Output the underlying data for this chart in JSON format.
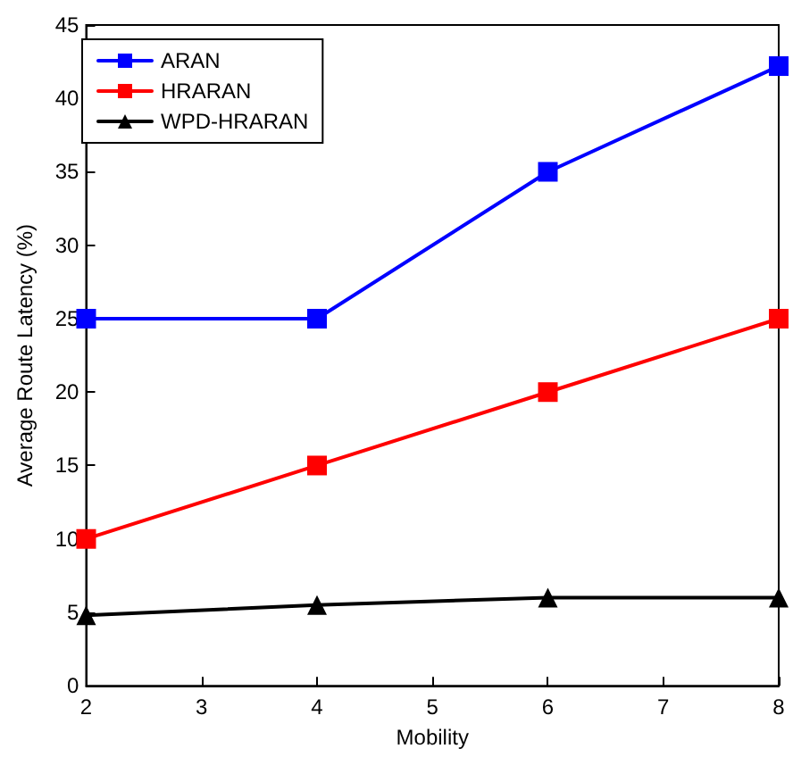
{
  "chart_data": {
    "type": "line",
    "xlabel": "Mobility",
    "ylabel": "Average Route Latency (%)",
    "x": [
      2,
      4,
      6,
      8
    ],
    "xlim": [
      2,
      8
    ],
    "xticks": [
      2,
      3,
      4,
      5,
      6,
      7,
      8
    ],
    "ylim": [
      0,
      45
    ],
    "yticks": [
      0,
      5,
      10,
      15,
      20,
      25,
      30,
      35,
      40,
      45
    ],
    "grid": false,
    "legend": "top left",
    "line_style": "solid",
    "series": [
      {
        "name": "ARAN",
        "color": "#0000ff",
        "marker": "square",
        "values": [
          25,
          25,
          35,
          42.2
        ]
      },
      {
        "name": "HRARAN",
        "color": "#ff0000",
        "marker": "square",
        "values": [
          10,
          15,
          20,
          25
        ]
      },
      {
        "name": "WPD-HRARAN",
        "color": "#000000",
        "marker": "triangle",
        "values": [
          4.8,
          5.5,
          6,
          6
        ]
      }
    ]
  }
}
